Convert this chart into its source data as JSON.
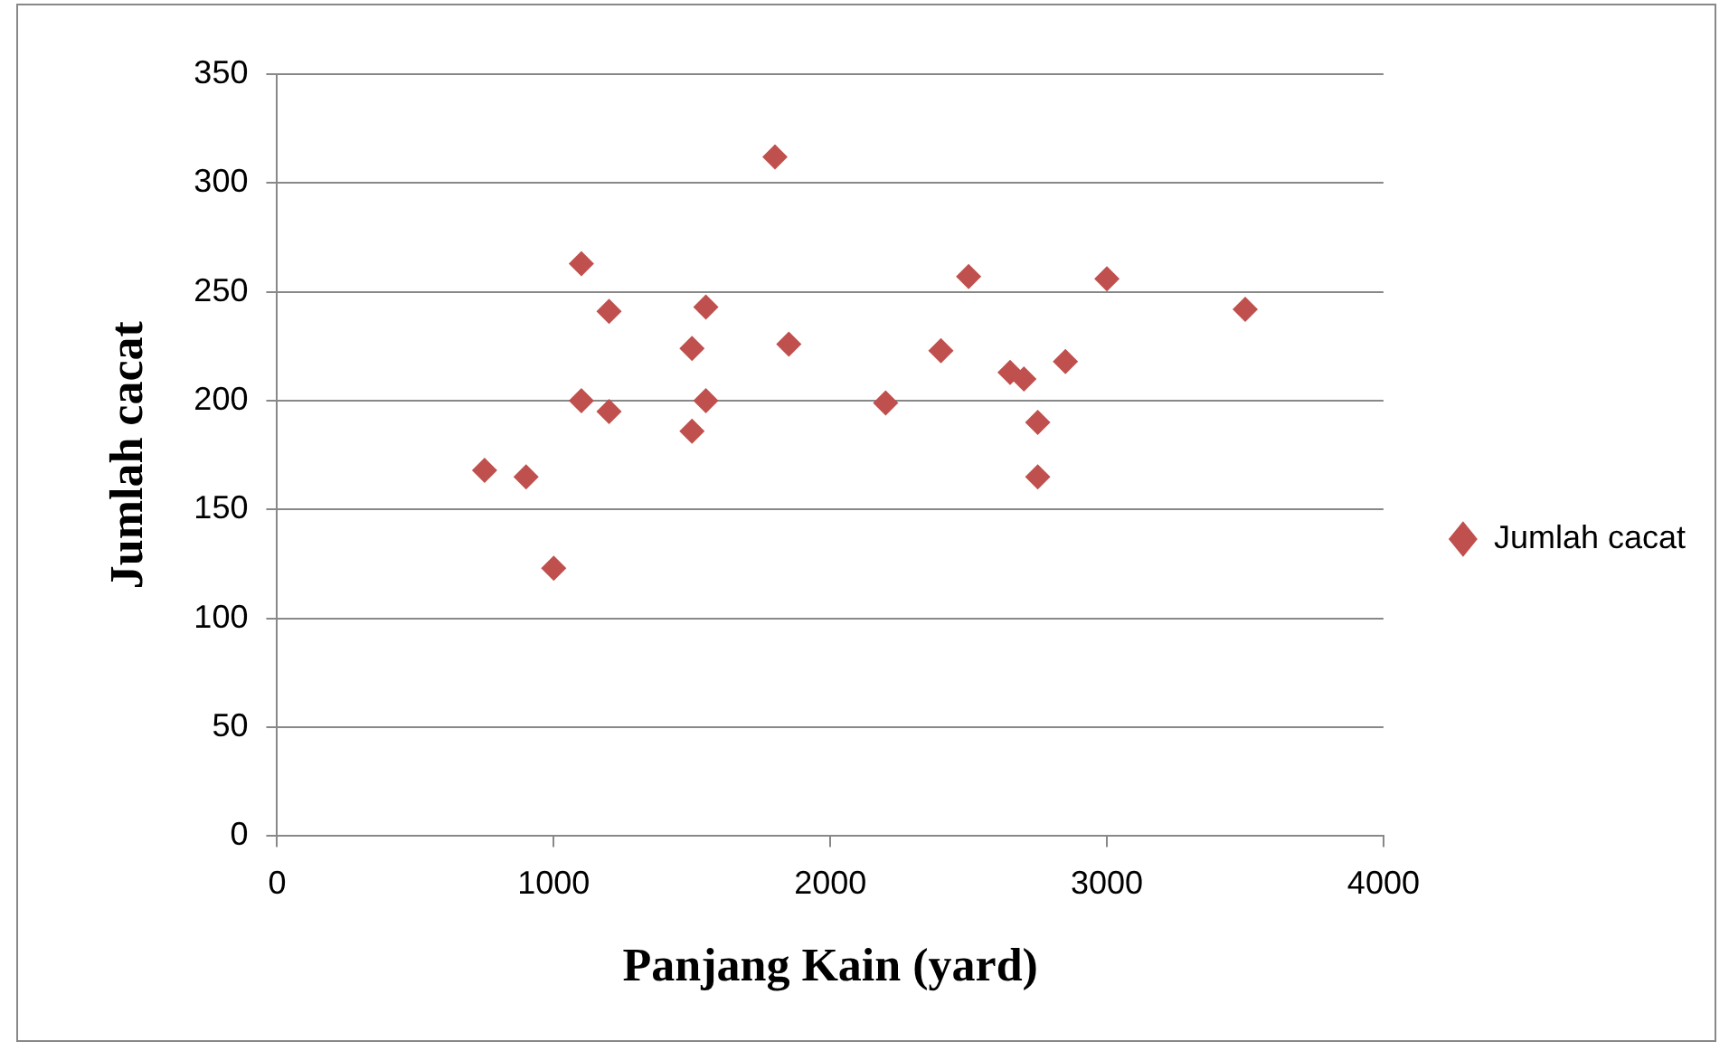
{
  "chart_data": {
    "type": "scatter",
    "xlabel": "Panjang Kain (yard)",
    "ylabel": "Jumlah cacat",
    "xlim": [
      0,
      4000
    ],
    "xticks": [
      0,
      1000,
      2000,
      3000,
      4000
    ],
    "ylim": [
      0,
      350
    ],
    "yticks": [
      0,
      50,
      100,
      150,
      200,
      250,
      300,
      350
    ],
    "grid": "y",
    "legend": "right",
    "marker": "diamond",
    "series": [
      {
        "name": "Jumlah cacat",
        "color": "#c0504d",
        "x": [
          750,
          900,
          1000,
          1100,
          1100,
          1200,
          1200,
          1500,
          1500,
          1550,
          1550,
          1800,
          1850,
          2200,
          2400,
          2500,
          2650,
          2700,
          2750,
          2750,
          2850,
          3000,
          3500
        ],
        "values": [
          168,
          165,
          123,
          263,
          200,
          241,
          195,
          224,
          186,
          243,
          200,
          312,
          226,
          199,
          223,
          257,
          213,
          210,
          190,
          165,
          218,
          256,
          242
        ]
      }
    ]
  }
}
